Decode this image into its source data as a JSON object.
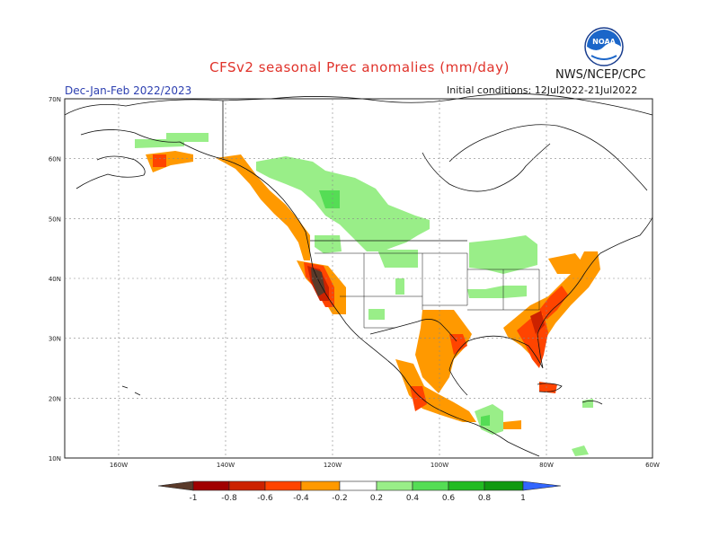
{
  "title": "CFSv2 seasonal Prec anomalies (mm/day)",
  "season": "Dec-Jan-Feb 2022/2023",
  "agency": "NWS/NCEP/CPC",
  "initial_conditions": "Initial conditions: 12Jul2022-21Jul2022",
  "logo_text": "NOAA",
  "lat_labels": [
    "70N",
    "60N",
    "50N",
    "40N",
    "30N",
    "20N",
    "10N"
  ],
  "lon_labels": [
    "160W",
    "140W",
    "120W",
    "100W",
    "80W",
    "60W"
  ],
  "legend": {
    "labels": [
      "-1",
      "-0.8",
      "-0.6",
      "-0.4",
      "-0.2",
      "0.2",
      "0.4",
      "0.6",
      "0.8",
      "1"
    ],
    "colors": [
      "#5a3a2a",
      "#a00000",
      "#cc2200",
      "#ff4400",
      "#ff9900",
      "#ffffff",
      "#99ee88",
      "#55dd55",
      "#22bb22",
      "#119911",
      "#3366ff"
    ]
  },
  "colors": {
    "dry_strong": "#5a3a2a",
    "dry_heavy": "#cc2200",
    "dry_moderate": "#ff4400",
    "dry_light": "#ff9900",
    "wet_light": "#99ee88",
    "wet_moderate": "#55dd55"
  }
}
